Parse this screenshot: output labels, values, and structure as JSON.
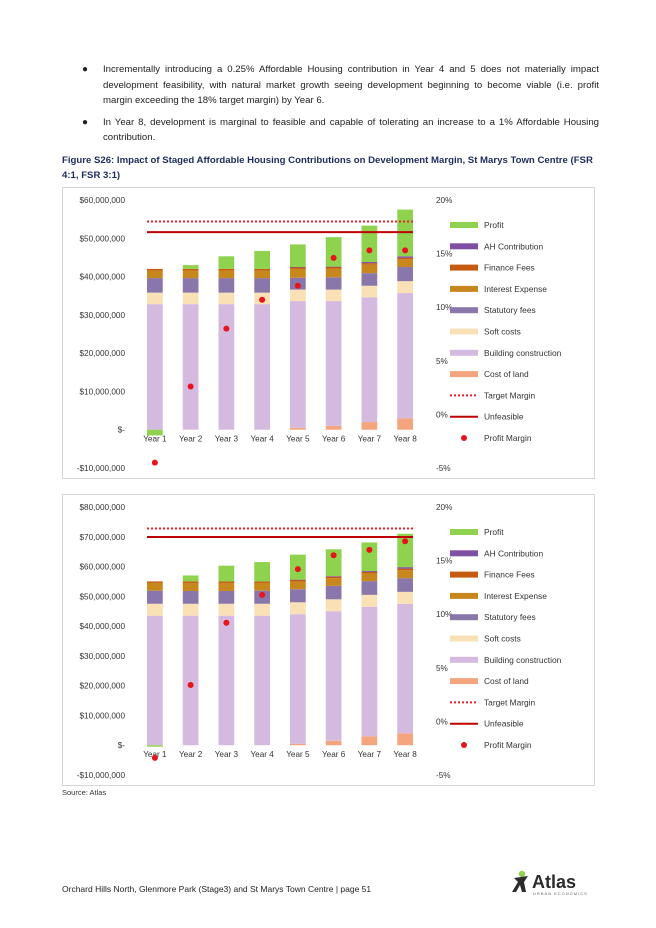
{
  "bullets": [
    "Incrementally introducing a 0.25% Affordable Housing contribution in Year 4 and 5 does not materially impact development feasibility, with natural market growth seeing development beginning to become viable (i.e. profit margin exceeding the 18% target margin) by Year 6.",
    "In Year 8, development is marginal to feasible and capable of tolerating an increase to a 1% Affordable Housing contribution."
  ],
  "figure_title": "Figure S26: Impact of Staged Affordable Housing Contributions on Development Margin, St Marys Town Centre (FSR 4:1, FSR 3:1)",
  "source": "Source: Atlas",
  "footer": "Orchard Hills North, Glenmore Park (Stage3) and St Marys Town Centre  |  page 51",
  "logo": {
    "name": "Atlas",
    "tagline": "URBAN ECONOMICS"
  },
  "colors": {
    "profit": "#8ed24e",
    "ah": "#7e4fa3",
    "finance": "#c55a11",
    "interest": "#c8871c",
    "statutory": "#8977ab",
    "soft": "#f9e0b5",
    "building": "#d5badf",
    "land": "#f4a57e",
    "target": "#e8202a",
    "unfeasible": "#c00000",
    "margin": "#e8141b"
  },
  "chart_data": [
    {
      "type": "bar",
      "stacked": true,
      "categories": [
        "Year 1",
        "Year 2",
        "Year 3",
        "Year 4",
        "Year 5",
        "Year 6",
        "Year 7",
        "Year 8"
      ],
      "y_left_ticks": [
        "$60,000,000",
        "$50,000,000",
        "$40,000,000",
        "$30,000,000",
        "$20,000,000",
        "$10,000,000",
        "$-",
        "-$10,000,000"
      ],
      "y_right_ticks": [
        "20%",
        "15%",
        "10%",
        "5%",
        "0%",
        "-5%"
      ],
      "ylim": [
        -10000000,
        60000000
      ],
      "y2lim": [
        -5,
        20
      ],
      "series": [
        {
          "name": "Profit",
          "key": "profit",
          "values": [
            -1500000,
            1000000,
            3300000,
            4700000,
            5900000,
            7700000,
            9500000,
            12200000
          ]
        },
        {
          "name": "AH Contribution",
          "key": "ah",
          "values": [
            0,
            0,
            0,
            0,
            100000,
            100000,
            300000,
            400000
          ]
        },
        {
          "name": "Finance Fees",
          "key": "finance",
          "values": [
            400000,
            400000,
            400000,
            400000,
            400000,
            400000,
            400000,
            400000
          ]
        },
        {
          "name": "Interest Expense",
          "key": "interest",
          "values": [
            2000000,
            2000000,
            2000000,
            2000000,
            2300000,
            2300000,
            2200000,
            2000000
          ]
        },
        {
          "name": "Statutory fees",
          "key": "statutory",
          "values": [
            3800000,
            3800000,
            3800000,
            3800000,
            3100000,
            3200000,
            3300000,
            3700000
          ]
        },
        {
          "name": "Soft costs",
          "key": "soft",
          "values": [
            3000000,
            3000000,
            3000000,
            3000000,
            3000000,
            3000000,
            3000000,
            3100000
          ]
        },
        {
          "name": "Building construction",
          "key": "building",
          "values": [
            32800000,
            32800000,
            32800000,
            32800000,
            33100000,
            32600000,
            32600000,
            32700000
          ]
        },
        {
          "name": "Cost of land",
          "key": "land",
          "values": [
            0,
            0,
            0,
            0,
            500000,
            1000000,
            2000000,
            3000000
          ]
        }
      ],
      "profit_margin": [
        -4.5,
        2.6,
        8.0,
        10.7,
        12.0,
        14.6,
        15.3,
        15.3
      ],
      "target_margin": 18,
      "unfeasible_margin": 17,
      "legend": [
        "Profit",
        "AH Contribution",
        "Finance Fees",
        "Interest Expense",
        "Statutory fees",
        "Soft costs",
        "Building construction",
        "Cost of land",
        "Target Margin",
        "Unfeasible",
        "Profit Margin"
      ]
    },
    {
      "type": "bar",
      "stacked": true,
      "categories": [
        "Year 1",
        "Year 2",
        "Year 3",
        "Year 4",
        "Year 5",
        "Year 6",
        "Year 7",
        "Year 8"
      ],
      "y_left_ticks": [
        "$80,000,000",
        "$70,000,000",
        "$60,000,000",
        "$50,000,000",
        "$40,000,000",
        "$30,000,000",
        "$20,000,000",
        "$10,000,000",
        "$-",
        "-$10,000,000"
      ],
      "y_right_ticks": [
        "20%",
        "15%",
        "10%",
        "5%",
        "0%",
        "-5%"
      ],
      "ylim": [
        -10000000,
        80000000
      ],
      "y2lim": [
        -5,
        20
      ],
      "series": [
        {
          "name": "Profit",
          "key": "profit",
          "values": [
            -500000,
            2000000,
            5300000,
            6500000,
            8400000,
            9000000,
            9600000,
            11200000
          ]
        },
        {
          "name": "AH Contribution",
          "key": "ah",
          "values": [
            0,
            0,
            0,
            0,
            100000,
            200000,
            300000,
            500000
          ]
        },
        {
          "name": "Finance Fees",
          "key": "finance",
          "values": [
            500000,
            500000,
            500000,
            500000,
            500000,
            500000,
            500000,
            500000
          ]
        },
        {
          "name": "Interest Expense",
          "key": "interest",
          "values": [
            2600000,
            2700000,
            2700000,
            2600000,
            2600000,
            2600000,
            2600000,
            2700000
          ]
        },
        {
          "name": "Statutory fees",
          "key": "statutory",
          "values": [
            4400000,
            4300000,
            4300000,
            4400000,
            4400000,
            4500000,
            4600000,
            4600000
          ]
        },
        {
          "name": "Soft costs",
          "key": "soft",
          "values": [
            4000000,
            4000000,
            4000000,
            4000000,
            4000000,
            4000000,
            4000000,
            4000000
          ]
        },
        {
          "name": "Building construction",
          "key": "building",
          "values": [
            43500000,
            43500000,
            43500000,
            43500000,
            43500000,
            43500000,
            43500000,
            43500000
          ]
        },
        {
          "name": "Cost of land",
          "key": "land",
          "values": [
            0,
            0,
            0,
            0,
            500000,
            1500000,
            3000000,
            4000000
          ]
        }
      ],
      "profit_margin": [
        -3.4,
        3.4,
        9.2,
        11.8,
        14.2,
        15.5,
        16.0,
        16.8
      ],
      "target_margin": 18,
      "unfeasible_margin": 17.2,
      "legend": [
        "Profit",
        "AH Contribution",
        "Finance Fees",
        "Interest Expense",
        "Statutory fees",
        "Soft costs",
        "Building construction",
        "Cost of land",
        "Target Margin",
        "Unfeasible",
        "Profit Margin"
      ]
    }
  ]
}
